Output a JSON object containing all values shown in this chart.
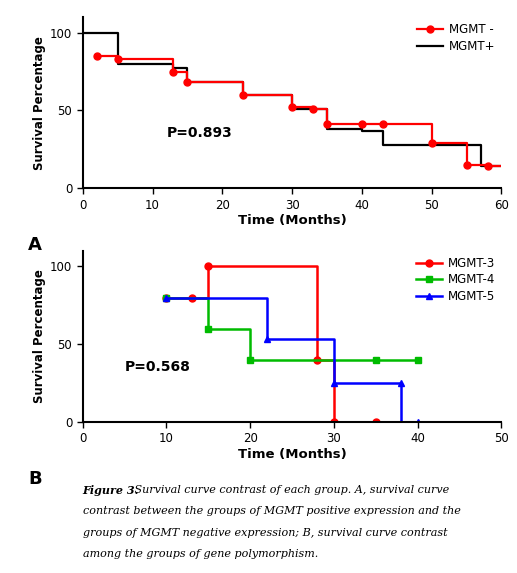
{
  "panel_A": {
    "mgmt_neg_x": [
      2,
      5,
      5,
      13,
      13,
      15,
      15,
      23,
      23,
      30,
      30,
      33,
      33,
      35,
      35,
      40,
      40,
      43,
      43,
      50,
      50,
      55,
      55,
      58,
      58,
      60
    ],
    "mgmt_neg_y": [
      85,
      85,
      83,
      83,
      75,
      75,
      68,
      68,
      60,
      60,
      52,
      52,
      51,
      51,
      41,
      41,
      41,
      41,
      41,
      41,
      29,
      29,
      15,
      15,
      14,
      14
    ],
    "mgmt_neg_mx": [
      2,
      5,
      13,
      15,
      23,
      30,
      33,
      35,
      40,
      43,
      50,
      55,
      58
    ],
    "mgmt_neg_my": [
      85,
      83,
      75,
      68,
      60,
      52,
      51,
      41,
      41,
      41,
      29,
      15,
      14
    ],
    "mgmt_pos_x": [
      0,
      5,
      5,
      13,
      13,
      15,
      15,
      23,
      23,
      30,
      30,
      35,
      35,
      40,
      40,
      43,
      43,
      52,
      52,
      55,
      55,
      57,
      57,
      60
    ],
    "mgmt_pos_y": [
      100,
      100,
      80,
      80,
      77,
      77,
      68,
      68,
      60,
      60,
      51,
      51,
      38,
      38,
      37,
      37,
      28,
      28,
      28,
      28,
      28,
      28,
      14,
      14
    ],
    "color_neg": "#FF0000",
    "color_pos": "#000000",
    "label_neg": "MGMT -",
    "label_pos": "MGMT+",
    "p_value": "P=0.893",
    "xlim": [
      0,
      60
    ],
    "ylim": [
      0,
      110
    ],
    "xticks": [
      0,
      10,
      20,
      30,
      40,
      50,
      60
    ],
    "yticks": [
      0,
      50,
      100
    ],
    "xlabel": "Time (Months)",
    "ylabel": "Survival Percentage",
    "panel_label": "A"
  },
  "panel_B": {
    "mgmt3_x": [
      10,
      13,
      13,
      15,
      15,
      28,
      28,
      30,
      30,
      35
    ],
    "mgmt3_y": [
      80,
      80,
      80,
      80,
      100,
      100,
      40,
      40,
      0,
      0
    ],
    "mgmt3_mx": [
      10,
      13,
      15,
      28,
      30,
      35
    ],
    "mgmt3_my": [
      80,
      80,
      100,
      40,
      0,
      0
    ],
    "mgmt4_x": [
      10,
      15,
      15,
      20,
      20,
      35,
      35,
      40
    ],
    "mgmt4_y": [
      80,
      80,
      60,
      60,
      40,
      40,
      40,
      40
    ],
    "mgmt4_mx": [
      10,
      15,
      20,
      35,
      40
    ],
    "mgmt4_my": [
      80,
      60,
      40,
      40,
      40
    ],
    "mgmt5_x": [
      10,
      22,
      22,
      30,
      30,
      38,
      38,
      40
    ],
    "mgmt5_y": [
      80,
      80,
      53,
      53,
      25,
      25,
      0,
      0
    ],
    "mgmt5_mx": [
      10,
      22,
      30,
      38,
      40
    ],
    "mgmt5_my": [
      80,
      53,
      25,
      25,
      0
    ],
    "color3": "#FF0000",
    "color4": "#00BB00",
    "color5": "#0000FF",
    "label3": "MGMT-3",
    "label4": "MGMT-4",
    "label5": "MGMT-5",
    "p_value": "P=0.568",
    "xlim": [
      0,
      50
    ],
    "ylim": [
      0,
      110
    ],
    "xticks": [
      0,
      10,
      20,
      30,
      40,
      50
    ],
    "yticks": [
      0,
      50,
      100
    ],
    "xlabel": "Time (Months)",
    "ylabel": "Survival Percentage",
    "panel_label": "B"
  },
  "caption_bold": "Figure 3.",
  "caption_rest": " Survival curve contrast of each group. A, survival curve contrast between the groups of MGMT positive expression and the groups of MGMT negative expression; B, survival curve contrast among the groups of gene polymorphism.",
  "bg_color": "#FFFFFF"
}
